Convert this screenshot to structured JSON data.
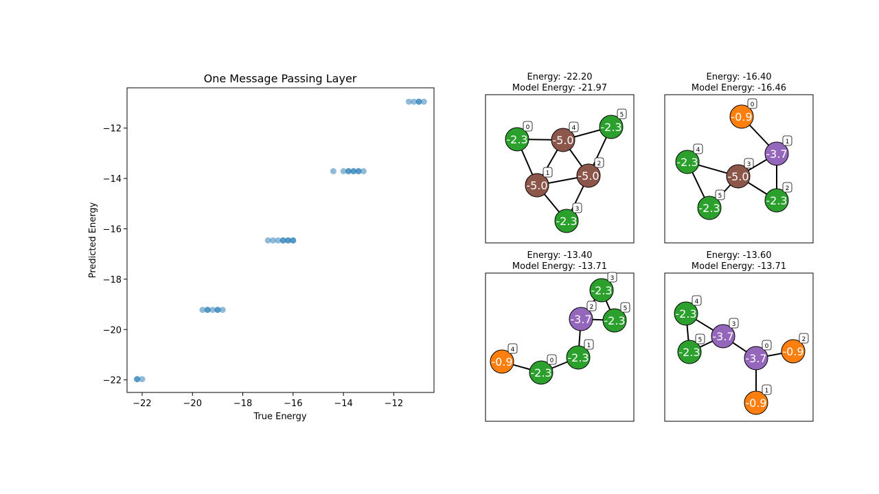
{
  "chart_data": [
    {
      "type": "scatter",
      "title": "One Message Passing Layer",
      "xlabel": "True Energy",
      "ylabel": "Predicted Energy",
      "xlim": [
        -22.6,
        -10.4
      ],
      "ylim": [
        -22.5,
        -10.4
      ],
      "xticks": [
        -22,
        -20,
        -18,
        -16,
        -14,
        -12
      ],
      "yticks": [
        -22,
        -20,
        -18,
        -16,
        -14,
        -12
      ],
      "grid": false,
      "marker_color": "#1f77b4",
      "marker_alpha": 0.5,
      "points": [
        {
          "x": -22.2,
          "y": -21.97
        },
        {
          "x": -22.2,
          "y": -21.97
        },
        {
          "x": -22.0,
          "y": -21.97
        },
        {
          "x": -19.6,
          "y": -19.22
        },
        {
          "x": -19.4,
          "y": -19.22
        },
        {
          "x": -19.4,
          "y": -19.22
        },
        {
          "x": -19.2,
          "y": -19.22
        },
        {
          "x": -19.0,
          "y": -19.22
        },
        {
          "x": -19.0,
          "y": -19.22
        },
        {
          "x": -18.8,
          "y": -19.22
        },
        {
          "x": -17.0,
          "y": -16.46
        },
        {
          "x": -16.8,
          "y": -16.46
        },
        {
          "x": -16.6,
          "y": -16.46
        },
        {
          "x": -16.4,
          "y": -16.46
        },
        {
          "x": -16.4,
          "y": -16.46
        },
        {
          "x": -16.2,
          "y": -16.46
        },
        {
          "x": -16.2,
          "y": -16.46
        },
        {
          "x": -16.0,
          "y": -16.46
        },
        {
          "x": -16.0,
          "y": -16.46
        },
        {
          "x": -14.4,
          "y": -13.71
        },
        {
          "x": -14.0,
          "y": -13.71
        },
        {
          "x": -13.8,
          "y": -13.71
        },
        {
          "x": -13.8,
          "y": -13.71
        },
        {
          "x": -13.6,
          "y": -13.71
        },
        {
          "x": -13.6,
          "y": -13.71
        },
        {
          "x": -13.4,
          "y": -13.71
        },
        {
          "x": -13.4,
          "y": -13.71
        },
        {
          "x": -13.2,
          "y": -13.71
        },
        {
          "x": -11.4,
          "y": -10.95
        },
        {
          "x": -11.2,
          "y": -10.95
        },
        {
          "x": -11.0,
          "y": -10.95
        },
        {
          "x": -11.0,
          "y": -10.95
        },
        {
          "x": -10.8,
          "y": -10.95
        }
      ]
    },
    {
      "type": "graph",
      "title": "Energy: -22.20",
      "subtitle": "Model Energy: -21.97",
      "nodes": [
        {
          "id": "0",
          "value": "-2.3",
          "color": "#2ca02c"
        },
        {
          "id": "1",
          "value": "-5.0",
          "color": "#8c564b"
        },
        {
          "id": "2",
          "value": "-5.0",
          "color": "#8c564b"
        },
        {
          "id": "3",
          "value": "-2.3",
          "color": "#2ca02c"
        },
        {
          "id": "4",
          "value": "-5.0",
          "color": "#8c564b"
        },
        {
          "id": "5",
          "value": "-2.3",
          "color": "#2ca02c"
        }
      ],
      "edges": [
        [
          "0",
          "4"
        ],
        [
          "0",
          "1"
        ],
        [
          "4",
          "5"
        ],
        [
          "4",
          "1"
        ],
        [
          "4",
          "2"
        ],
        [
          "5",
          "2"
        ],
        [
          "1",
          "2"
        ],
        [
          "1",
          "3"
        ],
        [
          "2",
          "3"
        ]
      ]
    },
    {
      "type": "graph",
      "title": "Energy: -16.40",
      "subtitle": "Model Energy: -16.46",
      "nodes": [
        {
          "id": "0",
          "value": "-0.9",
          "color": "#ff7f0e"
        },
        {
          "id": "1",
          "value": "-3.7",
          "color": "#9467bd"
        },
        {
          "id": "2",
          "value": "-2.3",
          "color": "#2ca02c"
        },
        {
          "id": "3",
          "value": "-5.0",
          "color": "#8c564b"
        },
        {
          "id": "4",
          "value": "-2.3",
          "color": "#2ca02c"
        },
        {
          "id": "5",
          "value": "-2.3",
          "color": "#2ca02c"
        }
      ],
      "edges": [
        [
          "0",
          "1"
        ],
        [
          "1",
          "3"
        ],
        [
          "1",
          "2"
        ],
        [
          "3",
          "4"
        ],
        [
          "3",
          "5"
        ],
        [
          "3",
          "2"
        ],
        [
          "4",
          "5"
        ]
      ]
    },
    {
      "type": "graph",
      "title": "Energy: -13.40",
      "subtitle": "Model Energy: -13.71",
      "nodes": [
        {
          "id": "0",
          "value": "-2.3",
          "color": "#2ca02c"
        },
        {
          "id": "1",
          "value": "-2.3",
          "color": "#2ca02c"
        },
        {
          "id": "2",
          "value": "-3.7",
          "color": "#9467bd"
        },
        {
          "id": "3",
          "value": "-2.3",
          "color": "#2ca02c"
        },
        {
          "id": "4",
          "value": "-0.9",
          "color": "#ff7f0e"
        },
        {
          "id": "5",
          "value": "-2.3",
          "color": "#2ca02c"
        }
      ],
      "edges": [
        [
          "4",
          "0"
        ],
        [
          "0",
          "1"
        ],
        [
          "1",
          "2"
        ],
        [
          "2",
          "3"
        ],
        [
          "2",
          "5"
        ],
        [
          "3",
          "5"
        ]
      ]
    },
    {
      "type": "graph",
      "title": "Energy: -13.60",
      "subtitle": "Model Energy: -13.71",
      "nodes": [
        {
          "id": "0",
          "value": "-3.7",
          "color": "#9467bd"
        },
        {
          "id": "1",
          "value": "-0.9",
          "color": "#ff7f0e"
        },
        {
          "id": "2",
          "value": "-0.9",
          "color": "#ff7f0e"
        },
        {
          "id": "3",
          "value": "-3.7",
          "color": "#9467bd"
        },
        {
          "id": "4",
          "value": "-2.3",
          "color": "#2ca02c"
        },
        {
          "id": "5",
          "value": "-2.3",
          "color": "#2ca02c"
        }
      ],
      "edges": [
        [
          "4",
          "5"
        ],
        [
          "4",
          "3"
        ],
        [
          "5",
          "3"
        ],
        [
          "3",
          "0"
        ],
        [
          "0",
          "2"
        ],
        [
          "0",
          "1"
        ]
      ]
    }
  ]
}
